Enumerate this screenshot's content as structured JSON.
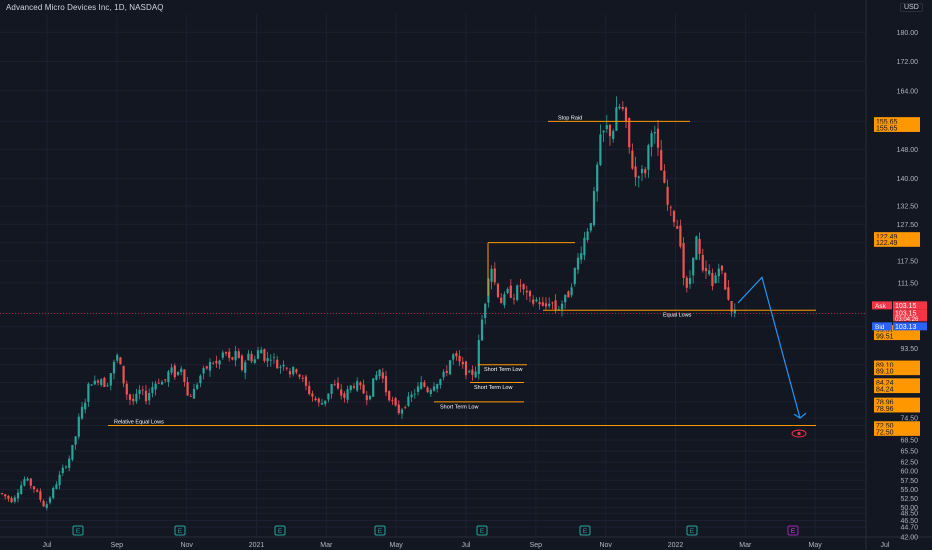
{
  "title": "Advanced Micro Devices Inc, 1D, NASDAQ",
  "currency": "USD",
  "chart_data": {
    "type": "candlestick",
    "symbol": "Advanced Micro Devices Inc",
    "interval": "1D",
    "exchange": "NASDAQ",
    "ylim": [
      42.0,
      185.0
    ],
    "y_ticks": [
      "180.00",
      "172.00",
      "164.00",
      "155.65",
      "148.00",
      "140.00",
      "132.50",
      "127.50",
      "122.49",
      "117.50",
      "111.50",
      "103.15",
      "99.51",
      "93.50",
      "89.10",
      "84.24",
      "78.96",
      "74.50",
      "72.50",
      "68.50",
      "65.50",
      "62.50",
      "60.00",
      "57.50",
      "55.00",
      "52.50",
      "50.00",
      "48.50",
      "46.50",
      "44.70",
      "42.00"
    ],
    "x_ticks": [
      "Jul",
      "Sep",
      "Nov",
      "2021",
      "Mar",
      "May",
      "Jul",
      "Sep",
      "Nov",
      "2022",
      "Mar",
      "May",
      "Jul"
    ],
    "price_path": [
      [
        0,
        54
      ],
      [
        12,
        52
      ],
      [
        25,
        58
      ],
      [
        35,
        55
      ],
      [
        45,
        50
      ],
      [
        55,
        56
      ],
      [
        62,
        60
      ],
      [
        70,
        64
      ],
      [
        76,
        70
      ],
      [
        80,
        76
      ],
      [
        84,
        78
      ],
      [
        90,
        85
      ],
      [
        95,
        84
      ],
      [
        100,
        86
      ],
      [
        106,
        83
      ],
      [
        112,
        88
      ],
      [
        118,
        92
      ],
      [
        122,
        86
      ],
      [
        128,
        80
      ],
      [
        134,
        79
      ],
      [
        140,
        82
      ],
      [
        146,
        80
      ],
      [
        152,
        83
      ],
      [
        158,
        85
      ],
      [
        164,
        84
      ],
      [
        170,
        88
      ],
      [
        176,
        86
      ],
      [
        182,
        89
      ],
      [
        188,
        80
      ],
      [
        194,
        82
      ],
      [
        200,
        86
      ],
      [
        206,
        88
      ],
      [
        212,
        90
      ],
      [
        218,
        89
      ],
      [
        224,
        93
      ],
      [
        230,
        90
      ],
      [
        236,
        92
      ],
      [
        242,
        88
      ],
      [
        248,
        92
      ],
      [
        254,
        90
      ],
      [
        260,
        94
      ],
      [
        266,
        90
      ],
      [
        272,
        92
      ],
      [
        278,
        88
      ],
      [
        284,
        90
      ],
      [
        290,
        87
      ],
      [
        296,
        88
      ],
      [
        302,
        85
      ],
      [
        308,
        82
      ],
      [
        314,
        80
      ],
      [
        320,
        78
      ],
      [
        326,
        80
      ],
      [
        332,
        84
      ],
      [
        338,
        82
      ],
      [
        344,
        80
      ],
      [
        350,
        83
      ],
      [
        356,
        84
      ],
      [
        362,
        82
      ],
      [
        368,
        80
      ],
      [
        374,
        85
      ],
      [
        380,
        88
      ],
      [
        386,
        82
      ],
      [
        392,
        79
      ],
      [
        398,
        76
      ],
      [
        404,
        78
      ],
      [
        410,
        80
      ],
      [
        416,
        82
      ],
      [
        422,
        84
      ],
      [
        428,
        82
      ],
      [
        434,
        84
      ],
      [
        440,
        85
      ],
      [
        446,
        87
      ],
      [
        452,
        92
      ],
      [
        458,
        90
      ],
      [
        464,
        88
      ],
      [
        470,
        86
      ],
      [
        476,
        88
      ],
      [
        480,
        98
      ],
      [
        486,
        108
      ],
      [
        490,
        118
      ],
      [
        496,
        110
      ],
      [
        502,
        106
      ],
      [
        508,
        109
      ],
      [
        514,
        108
      ],
      [
        520,
        111
      ],
      [
        526,
        108
      ],
      [
        532,
        106
      ],
      [
        538,
        107
      ],
      [
        544,
        104
      ],
      [
        550,
        107
      ],
      [
        556,
        104
      ],
      [
        562,
        106
      ],
      [
        568,
        108
      ],
      [
        574,
        114
      ],
      [
        580,
        120
      ],
      [
        586,
        125
      ],
      [
        592,
        130
      ],
      [
        596,
        140
      ],
      [
        600,
        150
      ],
      [
        606,
        154
      ],
      [
        612,
        152
      ],
      [
        618,
        160
      ],
      [
        624,
        158
      ],
      [
        628,
        150
      ],
      [
        632,
        144
      ],
      [
        636,
        140
      ],
      [
        640,
        143
      ],
      [
        644,
        140
      ],
      [
        648,
        148
      ],
      [
        652,
        155
      ],
      [
        656,
        150
      ],
      [
        660,
        144
      ],
      [
        664,
        138
      ],
      [
        668,
        132
      ],
      [
        672,
        130
      ],
      [
        676,
        128
      ],
      [
        680,
        124
      ],
      [
        684,
        112
      ],
      [
        688,
        108
      ],
      [
        692,
        118
      ],
      [
        696,
        124
      ],
      [
        700,
        118
      ],
      [
        704,
        112
      ],
      [
        708,
        116
      ],
      [
        712,
        110
      ],
      [
        716,
        114
      ],
      [
        720,
        118
      ],
      [
        724,
        110
      ],
      [
        728,
        108
      ],
      [
        732,
        104
      ],
      [
        736,
        103.15
      ]
    ],
    "levels": [
      {
        "label": "Stop Raid",
        "price": 155.65
      },
      {
        "label": "",
        "price": 122.49
      },
      {
        "label": "Equal Lows",
        "price": 104.0
      },
      {
        "label": "Short Term Low",
        "price": 89.1
      },
      {
        "label": "Short Term Low",
        "price": 84.24
      },
      {
        "label": "Short Term Low",
        "price": 78.96
      },
      {
        "label": "Relative Equal Lows",
        "price": 72.5
      }
    ],
    "price_tags": [
      {
        "text": "155.65",
        "price": 155.65
      },
      {
        "text": "155.65",
        "price": 153.9
      },
      {
        "text": "122.49",
        "price": 124.2
      },
      {
        "text": "122.49",
        "price": 122.49
      },
      {
        "text": "99.51",
        "price": 98.8
      },
      {
        "text": "99.51",
        "price": 97.0
      },
      {
        "text": "89.10",
        "price": 89.1
      },
      {
        "text": "89.10",
        "price": 87.4
      },
      {
        "text": "84.24",
        "price": 84.24
      },
      {
        "text": "84.24",
        "price": 82.5
      },
      {
        "text": "78.96",
        "price": 78.96
      },
      {
        "text": "78.96",
        "price": 77.2
      },
      {
        "text": "72.50",
        "price": 72.5
      },
      {
        "text": "72.50",
        "price": 70.8
      }
    ],
    "quote": {
      "ask_label": "Ask",
      "ask": "103.15",
      "last": "103.15",
      "countdown": "03:04:26",
      "bid_label": "Bid",
      "bid": "103.13"
    },
    "projection": [
      [
        738,
        106
      ],
      [
        762,
        113
      ],
      [
        800,
        74.5
      ]
    ],
    "earnings_markers": [
      "E",
      "E",
      "E",
      "E",
      "E",
      "E",
      "E",
      "E"
    ],
    "future_marker": "E",
    "colors": {
      "up": "#26a69a",
      "down": "#ef5350",
      "level": "#ff9800",
      "projection": "#2196f3",
      "ask": "#f23645",
      "bid": "#2962ff",
      "tag": "#ff9800"
    }
  }
}
